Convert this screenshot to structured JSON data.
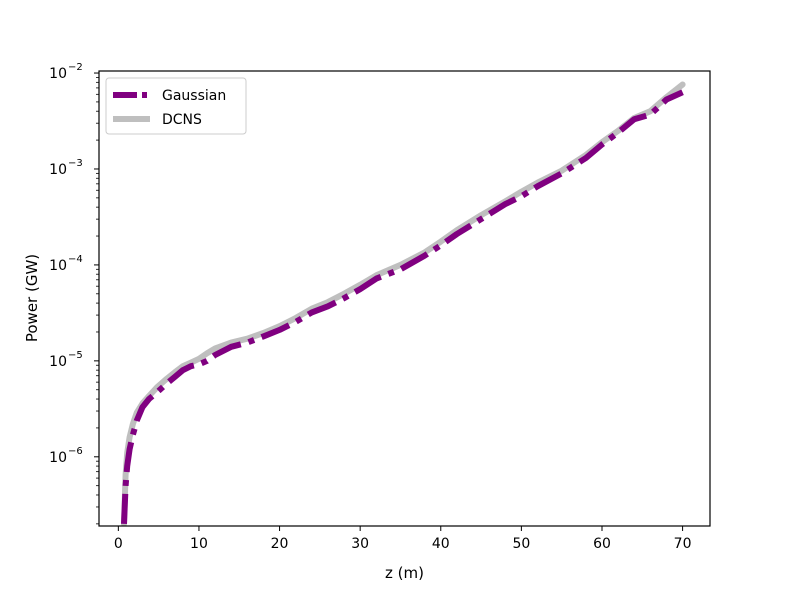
{
  "chart_data": {
    "type": "line",
    "title": "",
    "xlabel": "z (m)",
    "ylabel": "Power (GW)",
    "xlim": [
      -2.4,
      73.4
    ],
    "ylim": [
      1.9e-07,
      0.0105
    ],
    "yscale": "log",
    "grid": false,
    "legend_position": "top-left",
    "xticks": [
      0,
      10,
      20,
      30,
      40,
      50,
      60,
      70
    ],
    "xtick_labels": [
      "0",
      "10",
      "20",
      "30",
      "40",
      "50",
      "60",
      "70"
    ],
    "yticks": [
      1e-06,
      1e-05,
      0.0001,
      0.001,
      0.01
    ],
    "ytick_labels": [
      {
        "base": "10",
        "exp": "−6"
      },
      {
        "base": "10",
        "exp": "−5"
      },
      {
        "base": "10",
        "exp": "−4"
      },
      {
        "base": "10",
        "exp": "−3"
      },
      {
        "base": "10",
        "exp": "−2"
      }
    ],
    "series": [
      {
        "name": "Gaussian",
        "color": "#800080",
        "style": "dashdot",
        "x": [
          0.7,
          0.9,
          1.1,
          1.4,
          1.8,
          2.3,
          3.0,
          3.8,
          4.8,
          6.0,
          7.0,
          8.0,
          9.0,
          10.0,
          11.0,
          12.0,
          14.0,
          16.0,
          18.0,
          20.0,
          22.0,
          24.0,
          26.0,
          28.0,
          30.0,
          32.0,
          35.0,
          38.0,
          40.0,
          42.0,
          45.0,
          48.0,
          50.0,
          52.0,
          55.0,
          58.0,
          60.0,
          62.0,
          64.0,
          66.0,
          68.0,
          70.0
        ],
        "y": [
          2e-07,
          5e-07,
          8e-07,
          1.2e-06,
          1.7e-06,
          2.4e-06,
          3.3e-06,
          4e-06,
          4.7e-06,
          5.8e-06,
          6.8e-06,
          8e-06,
          8.8e-06,
          9.2e-06,
          1e-05,
          1.15e-05,
          1.4e-05,
          1.55e-05,
          1.8e-05,
          2.1e-05,
          2.55e-05,
          3.2e-05,
          3.7e-05,
          4.5e-05,
          5.6e-05,
          7.2e-05,
          9e-05,
          0.000125,
          0.00016,
          0.00021,
          0.0003,
          0.00043,
          0.00052,
          0.00066,
          0.0009,
          0.0013,
          0.0018,
          0.0024,
          0.0033,
          0.0037,
          0.0053,
          0.0063
        ]
      },
      {
        "name": "DCNS",
        "color": "#bfbfbf",
        "style": "solid",
        "x": [
          0.7,
          0.9,
          1.1,
          1.4,
          1.8,
          2.3,
          3.0,
          3.8,
          4.8,
          6.0,
          7.0,
          8.0,
          9.0,
          10.0,
          11.0,
          12.0,
          14.0,
          16.0,
          18.0,
          20.0,
          22.0,
          24.0,
          26.0,
          28.0,
          30.0,
          32.0,
          35.0,
          38.0,
          40.0,
          42.0,
          45.0,
          48.0,
          50.0,
          52.0,
          55.0,
          58.0,
          60.0,
          62.0,
          64.0,
          66.0,
          68.0,
          70.0
        ],
        "y": [
          2e-07,
          6.5e-07,
          1.1e-06,
          1.6e-06,
          2.2e-06,
          2.9e-06,
          3.6e-06,
          4.3e-06,
          5.3e-06,
          6.5e-06,
          7.6e-06,
          8.8e-06,
          9.6e-06,
          1.05e-05,
          1.2e-05,
          1.35e-05,
          1.55e-05,
          1.7e-05,
          1.95e-05,
          2.3e-05,
          2.8e-05,
          3.5e-05,
          4.1e-05,
          5e-05,
          6.2e-05,
          7.8e-05,
          0.0001,
          0.000135,
          0.000175,
          0.00023,
          0.00033,
          0.00046,
          0.00058,
          0.00072,
          0.00096,
          0.0014,
          0.0019,
          0.0025,
          0.0034,
          0.004,
          0.0056,
          0.0076
        ]
      }
    ]
  }
}
